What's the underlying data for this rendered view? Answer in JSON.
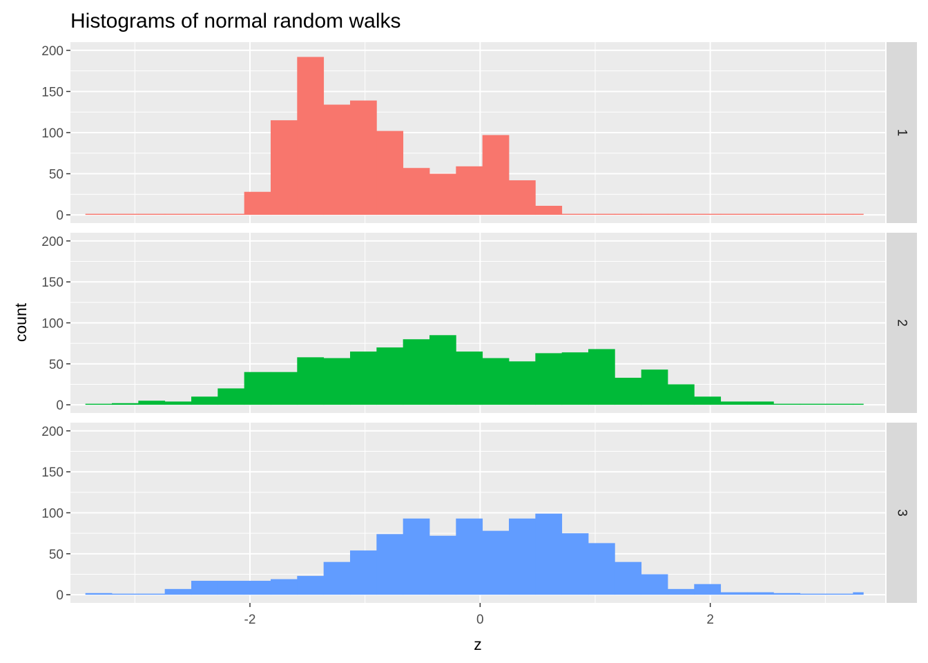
{
  "chart_data": {
    "type": "bar",
    "title": "Histograms of normal random walks",
    "xlabel": "z",
    "ylabel": "count",
    "xlim": [
      -3.56,
      3.52
    ],
    "ylim": [
      -10,
      210
    ],
    "x_ticks": [
      -2,
      0,
      2
    ],
    "x_tick_labels": [
      "-2",
      "0",
      "2"
    ],
    "y_ticks": [
      0,
      50,
      100,
      150,
      200
    ],
    "y_tick_labels": [
      "0",
      "50",
      "100",
      "150",
      "200"
    ],
    "grid": true,
    "legend": "none",
    "bin_edges": [
      -3.43,
      -3.2,
      -2.97,
      -2.74,
      -2.51,
      -2.28,
      -2.05,
      -1.82,
      -1.59,
      -1.36,
      -1.13,
      -0.9,
      -0.67,
      -0.44,
      -0.21,
      0.02,
      0.25,
      0.48,
      0.71,
      0.94,
      1.17,
      1.4,
      1.63,
      1.86,
      2.09,
      2.32,
      2.55,
      2.78,
      3.01,
      3.24,
      3.33
    ],
    "series": [
      {
        "name": "1",
        "color": "#F8766D",
        "values": [
          0,
          0,
          0,
          0,
          0,
          0,
          28,
          115,
          192,
          134,
          139,
          102,
          57,
          50,
          59,
          97,
          42,
          11,
          0,
          0,
          0,
          0,
          0,
          0,
          0,
          0,
          0,
          0,
          0,
          0
        ]
      },
      {
        "name": "2",
        "color": "#00BA38",
        "values": [
          0,
          2,
          5,
          4,
          10,
          20,
          40,
          40,
          58,
          57,
          65,
          70,
          80,
          85,
          65,
          57,
          53,
          63,
          64,
          68,
          33,
          43,
          25,
          10,
          4,
          4,
          1,
          0,
          0,
          0
        ]
      },
      {
        "name": "3",
        "color": "#619CFF",
        "values": [
          2,
          0,
          0,
          7,
          17,
          17,
          17,
          19,
          23,
          40,
          54,
          74,
          93,
          72,
          93,
          78,
          93,
          99,
          75,
          63,
          40,
          25,
          7,
          13,
          3,
          3,
          2,
          1,
          1,
          3
        ]
      }
    ]
  }
}
